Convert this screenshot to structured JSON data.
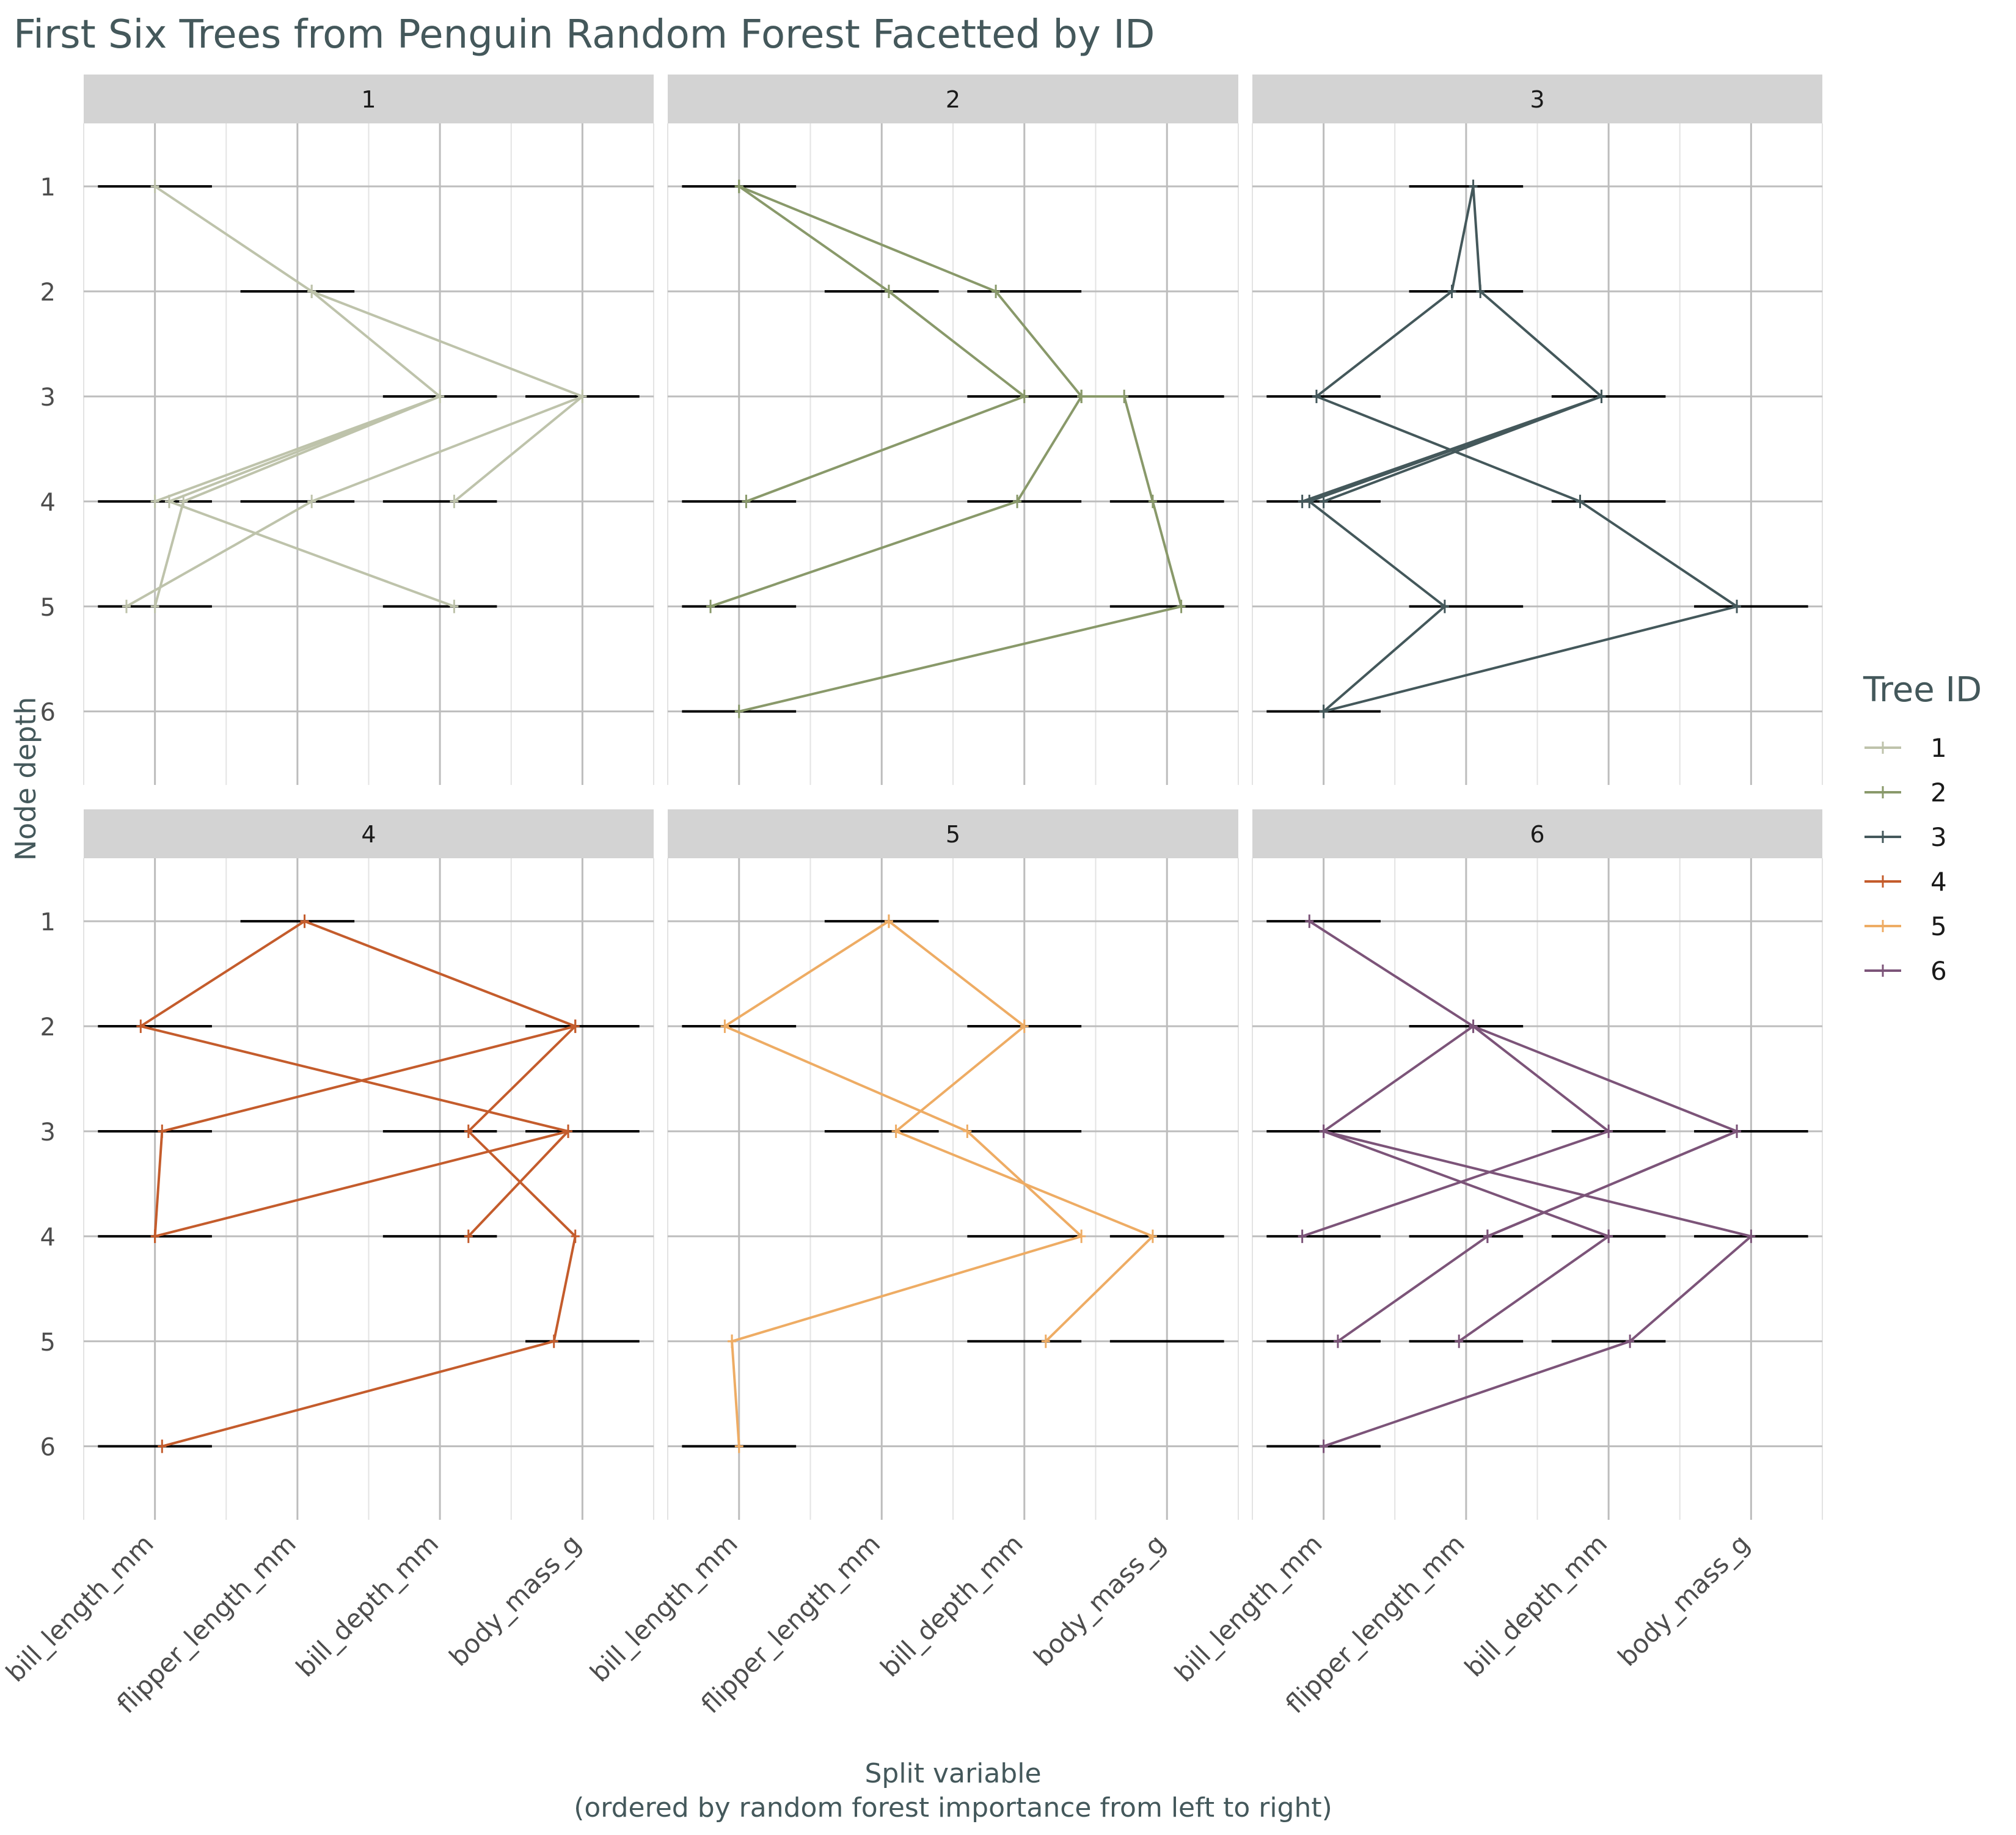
{
  "chart_data": {
    "type": "line",
    "title": "First Six Trees from Penguin Random Forest Facetted by ID",
    "xlabel": "Split variable",
    "xlabel_sub": "(ordered by random forest importance from left to right)",
    "ylabel": "Node depth",
    "categories": [
      "bill_length_mm",
      "flipper_length_mm",
      "bill_depth_mm",
      "body_mass_g"
    ],
    "y_ticks": [
      1,
      2,
      3,
      4,
      5,
      6
    ],
    "y_range": [
      0.4,
      6.7
    ],
    "x_range": [
      0.5,
      4.5
    ],
    "legend": {
      "title": "Tree ID",
      "position": "right",
      "entries": [
        "1",
        "2",
        "3",
        "4",
        "5",
        "6"
      ]
    },
    "colors": {
      "title": "#44585b",
      "strip_bg": "#d3d3d3",
      "grid_major": "#bdbdbd",
      "grid_minor": "#e3e3e3",
      "range_bar": "#000000",
      "axis_text": "#4d4d4d",
      "series": [
        "#bec3ab",
        "#89996a",
        "#44585b",
        "#c45c2c",
        "#eeac64",
        "#7c5479"
      ]
    },
    "facets": [
      {
        "id": "1",
        "ranges": [
          [
            1,
            1
          ],
          [
            2,
            2
          ],
          [
            3,
            3
          ],
          [
            3,
            4
          ],
          [
            4,
            1
          ],
          [
            4,
            2
          ],
          [
            4,
            3
          ],
          [
            5,
            1
          ],
          [
            5,
            3
          ]
        ],
        "paths": [
          [
            [
              1,
              1.0
            ],
            [
              2,
              2.1
            ],
            [
              3,
              4.0
            ]
          ],
          [
            [
              2,
              2.1
            ],
            [
              3,
              3.0
            ],
            [
              4,
              1.0
            ]
          ],
          [
            [
              3,
              3.0
            ],
            [
              4,
              1.2
            ],
            [
              5,
              1.0
            ]
          ],
          [
            [
              3,
              3.0
            ],
            [
              4,
              1.1
            ],
            [
              5,
              3.1
            ]
          ],
          [
            [
              3,
              4.0
            ],
            [
              4,
              2.1
            ],
            [
              5,
              0.8
            ]
          ],
          [
            [
              3,
              4.0
            ],
            [
              4,
              3.1
            ]
          ]
        ]
      },
      {
        "id": "2",
        "ranges": [
          [
            1,
            1
          ],
          [
            2,
            2
          ],
          [
            2,
            3
          ],
          [
            3,
            3
          ],
          [
            3,
            4
          ],
          [
            4,
            1
          ],
          [
            4,
            3
          ],
          [
            4,
            4
          ],
          [
            5,
            1
          ],
          [
            5,
            4
          ],
          [
            6,
            1
          ]
        ],
        "paths": [
          [
            [
              1,
              1.0
            ],
            [
              2,
              2.05
            ],
            [
              3,
              3.0
            ],
            [
              4,
              1.05
            ]
          ],
          [
            [
              1,
              1.0
            ],
            [
              2,
              2.8
            ],
            [
              3,
              3.4
            ]
          ],
          [
            [
              3,
              3.4
            ],
            [
              4,
              2.95
            ],
            [
              5,
              0.8
            ]
          ],
          [
            [
              3,
              3.4
            ],
            [
              3,
              3.7
            ],
            [
              4,
              3.9
            ],
            [
              5,
              4.1
            ],
            [
              6,
              1.0
            ]
          ]
        ]
      },
      {
        "id": "3",
        "ranges": [
          [
            1,
            2
          ],
          [
            2,
            2
          ],
          [
            3,
            1
          ],
          [
            3,
            3
          ],
          [
            4,
            1
          ],
          [
            4,
            3
          ],
          [
            5,
            2
          ],
          [
            5,
            4
          ],
          [
            6,
            1
          ]
        ],
        "paths": [
          [
            [
              1,
              2.05
            ],
            [
              2,
              1.9
            ],
            [
              3,
              0.95
            ],
            [
              4,
              2.8
            ],
            [
              5,
              3.9
            ],
            [
              6,
              1.0
            ]
          ],
          [
            [
              1,
              2.05
            ],
            [
              2,
              2.1
            ],
            [
              3,
              2.95
            ],
            [
              4,
              0.9
            ],
            [
              5,
              1.85
            ],
            [
              6,
              1.0
            ]
          ],
          [
            [
              3,
              2.95
            ],
            [
              4,
              1.0
            ]
          ],
          [
            [
              3,
              2.95
            ],
            [
              4,
              0.85
            ]
          ]
        ]
      },
      {
        "id": "4",
        "ranges": [
          [
            1,
            2
          ],
          [
            2,
            1
          ],
          [
            2,
            4
          ],
          [
            3,
            1
          ],
          [
            3,
            3
          ],
          [
            3,
            4
          ],
          [
            4,
            1
          ],
          [
            4,
            3
          ],
          [
            5,
            4
          ],
          [
            6,
            1
          ]
        ],
        "paths": [
          [
            [
              1,
              2.05
            ],
            [
              2,
              0.9
            ],
            [
              3,
              3.9
            ],
            [
              4,
              3.2
            ]
          ],
          [
            [
              1,
              2.05
            ],
            [
              2,
              3.95
            ],
            [
              3,
              1.05
            ],
            [
              4,
              1.0
            ]
          ],
          [
            [
              2,
              3.95
            ],
            [
              3,
              3.2
            ],
            [
              4,
              3.95
            ],
            [
              5,
              3.8
            ],
            [
              6,
              1.05
            ]
          ],
          [
            [
              3,
              3.9
            ],
            [
              4,
              1.0
            ]
          ]
        ]
      },
      {
        "id": "5",
        "ranges": [
          [
            1,
            2
          ],
          [
            2,
            1
          ],
          [
            2,
            3
          ],
          [
            3,
            2
          ],
          [
            3,
            3
          ],
          [
            4,
            3
          ],
          [
            4,
            4
          ],
          [
            5,
            3
          ],
          [
            5,
            4
          ],
          [
            6,
            1
          ]
        ],
        "paths": [
          [
            [
              1,
              2.05
            ],
            [
              2,
              0.9
            ],
            [
              3,
              2.6
            ],
            [
              4,
              3.4
            ],
            [
              5,
              0.95
            ]
          ],
          [
            [
              1,
              2.05
            ],
            [
              2,
              3.0
            ],
            [
              3,
              2.1
            ],
            [
              4,
              3.9
            ],
            [
              5,
              3.15
            ]
          ],
          [
            [
              5,
              0.95
            ],
            [
              6,
              1.0
            ]
          ]
        ]
      },
      {
        "id": "6",
        "ranges": [
          [
            1,
            1
          ],
          [
            2,
            2
          ],
          [
            3,
            1
          ],
          [
            3,
            3
          ],
          [
            3,
            4
          ],
          [
            4,
            1
          ],
          [
            4,
            2
          ],
          [
            4,
            3
          ],
          [
            4,
            4
          ],
          [
            5,
            1
          ],
          [
            5,
            2
          ],
          [
            5,
            3
          ],
          [
            6,
            1
          ]
        ],
        "paths": [
          [
            [
              1,
              0.9
            ],
            [
              2,
              2.05
            ],
            [
              3,
              1.0
            ],
            [
              4,
              3.0
            ]
          ],
          [
            [
              2,
              2.05
            ],
            [
              3,
              3.0
            ],
            [
              4,
              0.85
            ]
          ],
          [
            [
              2,
              2.05
            ],
            [
              3,
              3.9
            ],
            [
              4,
              2.15
            ],
            [
              5,
              1.1
            ]
          ],
          [
            [
              3,
              1.0
            ],
            [
              4,
              4.0
            ],
            [
              5,
              3.15
            ],
            [
              6,
              1.0
            ]
          ],
          [
            [
              3,
              3.9
            ],
            [
              4,
              2.15
            ]
          ],
          [
            [
              4,
              3.0
            ],
            [
              5,
              1.95
            ]
          ]
        ]
      }
    ]
  }
}
